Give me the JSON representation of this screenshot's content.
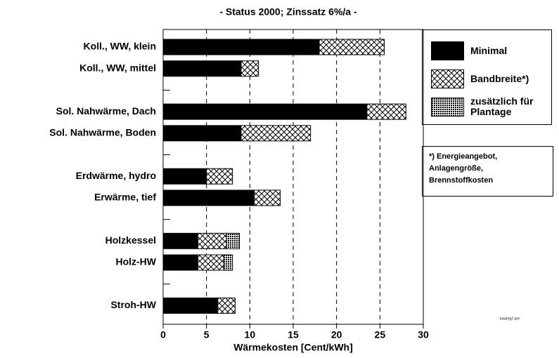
{
  "chart_data": {
    "type": "stacked-barh",
    "title": "- Status 2000; Zinssatz 6%/a -",
    "x_label": "Wärmekosten [Cent/kWh]",
    "categories": [
      "Koll., WW, klein",
      "Koll., WW, mittel",
      null,
      "Sol. Nahwärme, Dach",
      "Sol. Nahwärme, Boden",
      null,
      "Erdwärme, hydro",
      "Erwärme, tief",
      null,
      "Holzkessel",
      "Holz-HW",
      null,
      "Stroh-HW"
    ],
    "series": [
      {
        "name": "Minimal",
        "color": "#000000",
        "pattern": "solid",
        "values": [
          18,
          9,
          null,
          23.5,
          9,
          null,
          5,
          10.5,
          null,
          4,
          4,
          null,
          6.3
        ]
      },
      {
        "name": "Bandbreite*)",
        "color": "#000000",
        "pattern": "crosshatch",
        "values": [
          7.5,
          2,
          null,
          4.5,
          8,
          null,
          3,
          3,
          null,
          3.3,
          3,
          null,
          2
        ]
      },
      {
        "name": "zusätzlich für Plantage",
        "color": "#000000",
        "pattern": "dots",
        "values": [
          null,
          null,
          null,
          null,
          null,
          null,
          null,
          null,
          null,
          1.5,
          1,
          null,
          null
        ]
      }
    ],
    "xlim": [
      0,
      30
    ],
    "xticks": [
      0,
      5,
      10,
      15,
      20,
      25,
      30
    ],
    "grid": true,
    "note": [
      "*) Energieangebot,",
      "Anlagengröße,",
      "Brennstoffkosten"
    ],
    "file_label": "kostreg7.pre"
  }
}
